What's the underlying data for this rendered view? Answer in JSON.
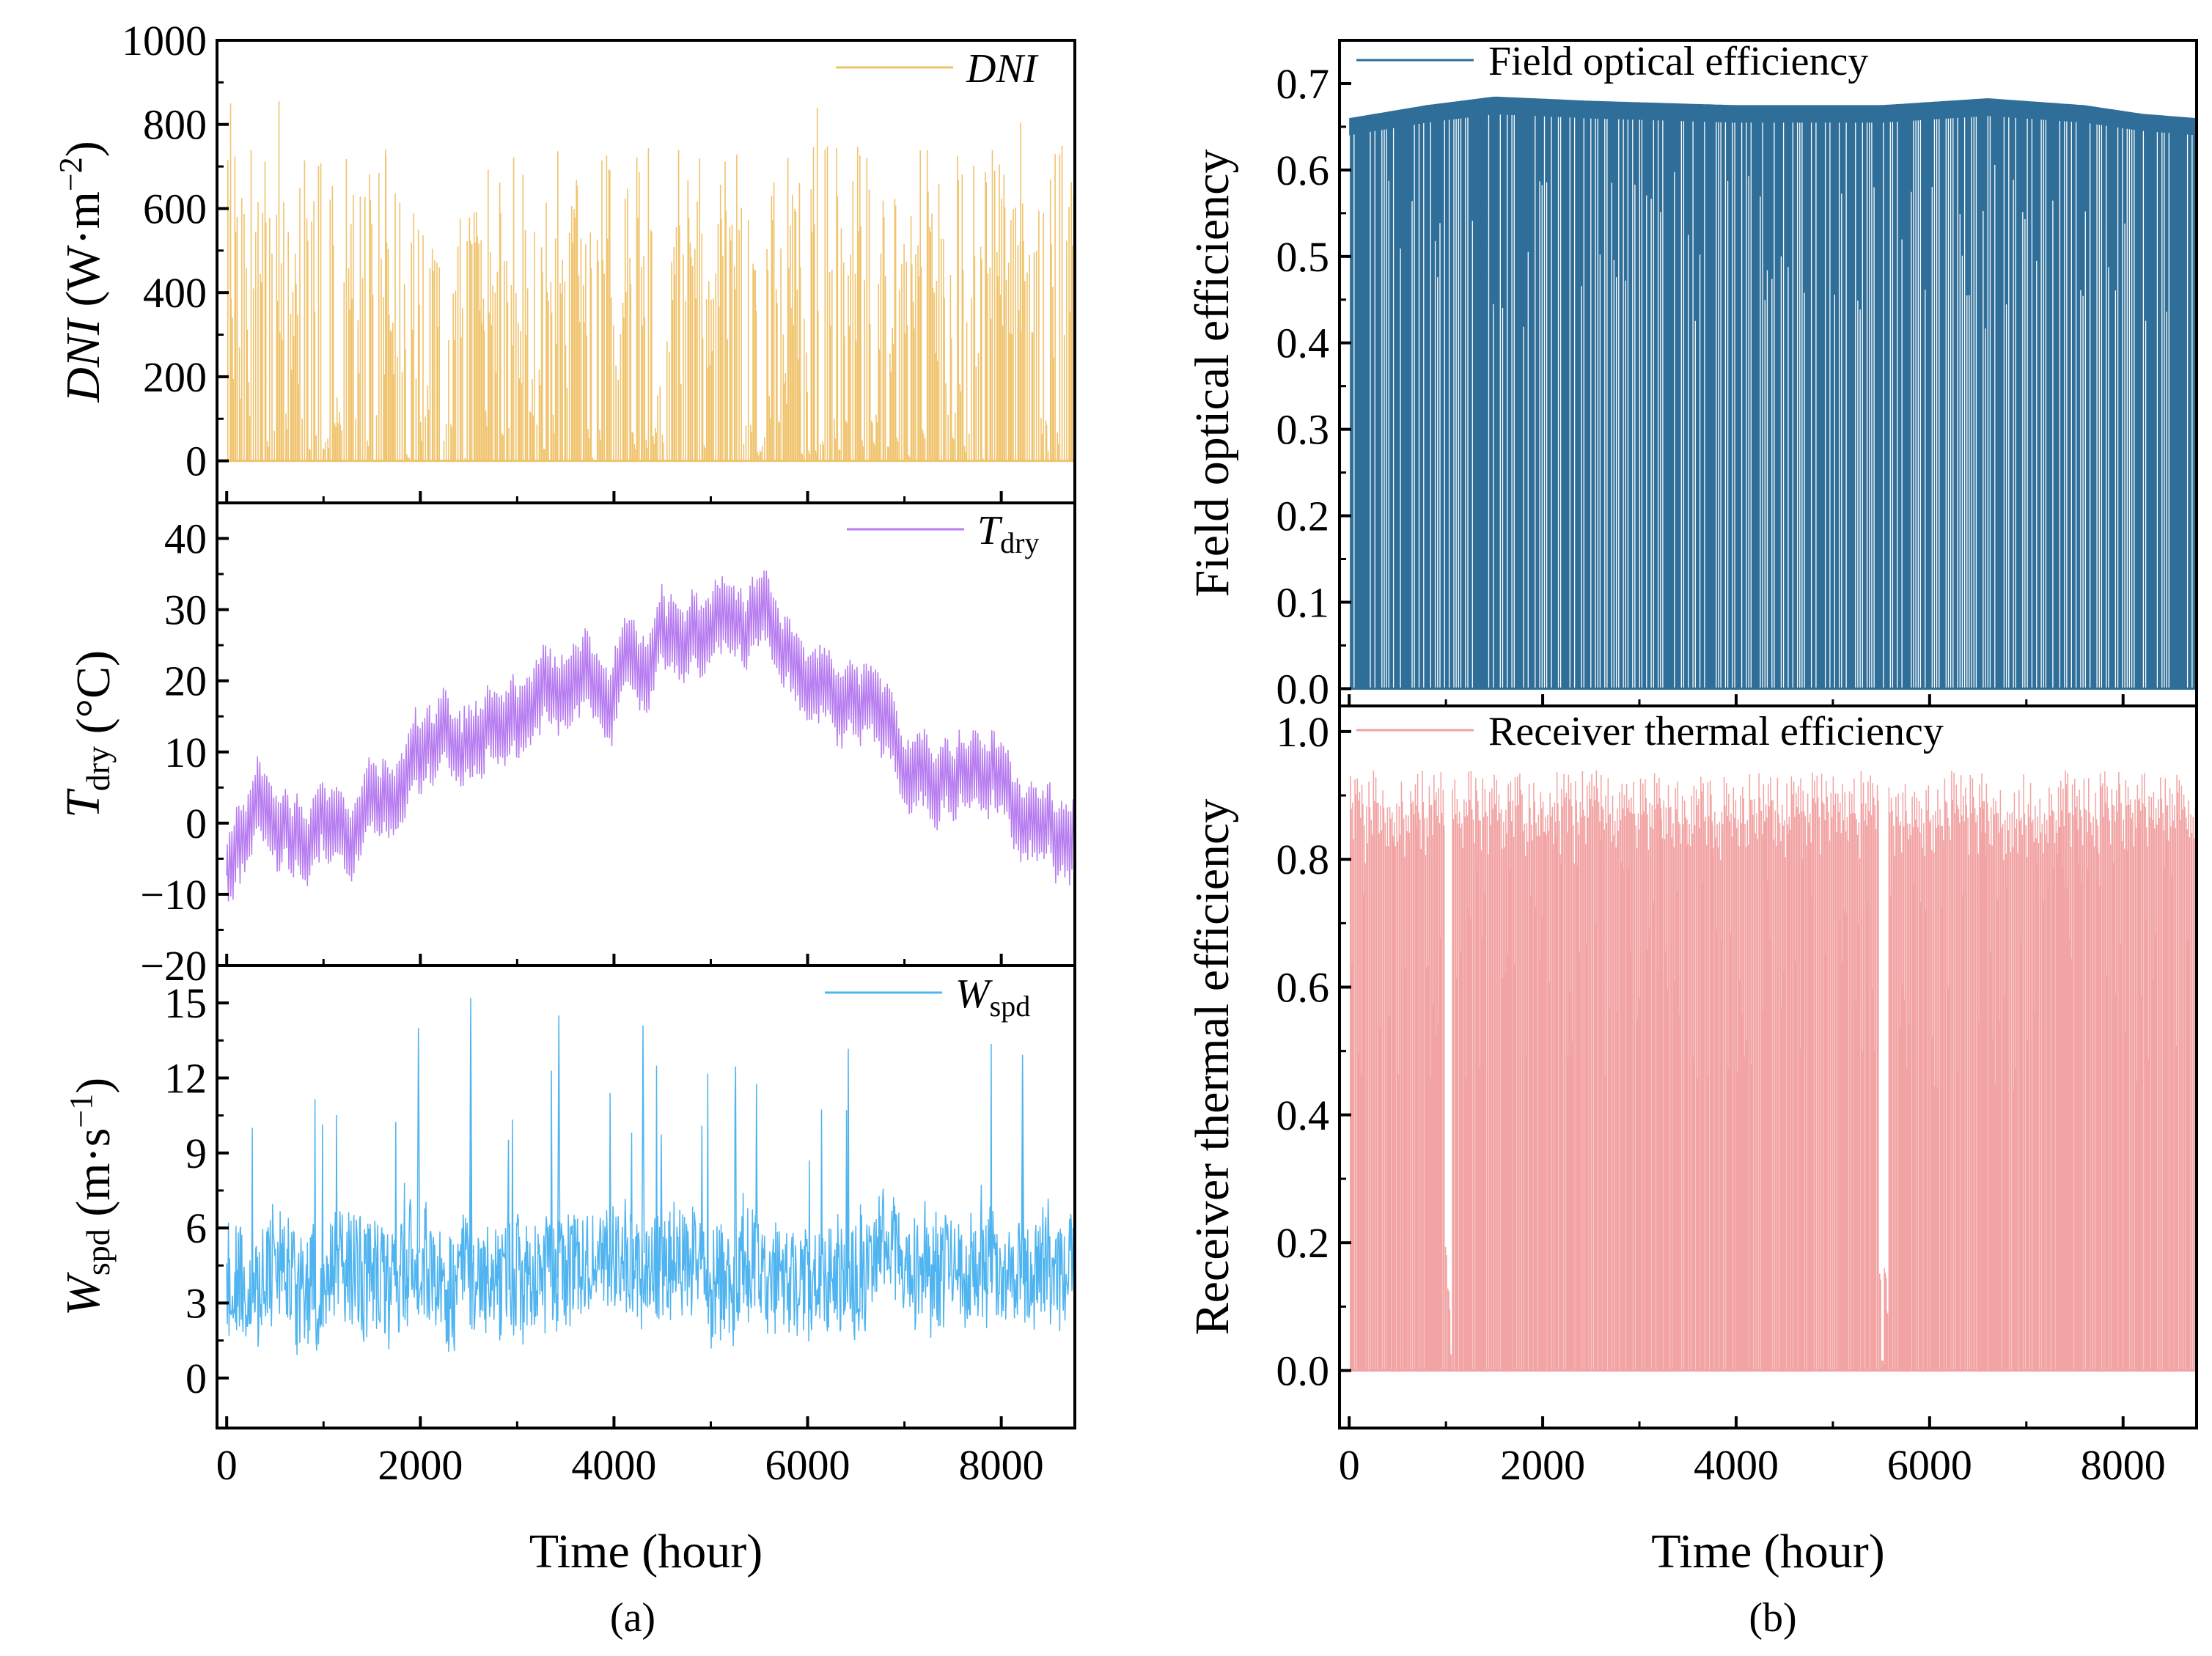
{
  "figure": {
    "left_label": "(a)",
    "right_label": "(b)"
  },
  "chart_data": [
    {
      "id": "dni",
      "type": "area",
      "xlim": [
        -100,
        8760
      ],
      "ylim": [
        -100,
        1000
      ],
      "yticks": [
        0,
        200,
        400,
        600,
        800,
        1000
      ],
      "xticks": [
        0,
        2000,
        4000,
        6000,
        8000
      ],
      "show_xticklabels": false,
      "ylabel": {
        "sym": "DNI",
        "sub": "",
        "unit": " (W·m",
        "sup": "−2",
        "close": ")"
      },
      "legend": {
        "sym": "DNI",
        "sub": "",
        "position": "top-right"
      },
      "series": [
        {
          "name": "DNI",
          "color": "#F0C36D",
          "mode": "spikes",
          "base": 0,
          "summary": "hourly direct normal irradiance, 0 at night, daytime peaks mostly 400-850",
          "notable_peaks": [
            [
              40,
              850
            ],
            [
              540,
              855
            ],
            [
              1640,
              740
            ],
            [
              6100,
              840
            ],
            [
              8200,
              805
            ]
          ],
          "low_periods": [
            [
              980,
              1060
            ],
            [
              5480,
              5560
            ]
          ],
          "max": 855
        }
      ]
    },
    {
      "id": "tdry",
      "type": "line",
      "xlim": [
        -100,
        8760
      ],
      "ylim": [
        -20,
        45
      ],
      "yticks": [
        -20,
        -10,
        0,
        10,
        20,
        30,
        40
      ],
      "xticks": [
        0,
        2000,
        4000,
        6000,
        8000
      ],
      "show_xticklabels": false,
      "ylabel": {
        "sym": "T",
        "sub": "dry",
        "unit": " (°C)",
        "sup": "",
        "close": ""
      },
      "legend": {
        "sym": "T",
        "sub": "dry",
        "position": "top-right"
      },
      "series": [
        {
          "name": "Tdry",
          "color": "#B77CF0",
          "mode": "line",
          "seasonal_trend": [
            [
              0,
              -8
            ],
            [
              400,
              0
            ],
            [
              1000,
              1
            ],
            [
              2000,
              8
            ],
            [
              3000,
              15
            ],
            [
              3500,
              20
            ],
            [
              4000,
              22
            ],
            [
              4800,
              27
            ],
            [
              5200,
              28
            ],
            [
              5500,
              28
            ],
            [
              6000,
              22
            ],
            [
              6500,
              18
            ],
            [
              7000,
              12
            ],
            [
              7500,
              8
            ],
            [
              8000,
              3
            ],
            [
              8500,
              -1
            ],
            [
              8760,
              -5
            ]
          ],
          "daily_range": 10,
          "min": -11,
          "max": 36
        }
      ]
    },
    {
      "id": "wspd",
      "type": "line",
      "xlim": [
        -100,
        8760
      ],
      "ylim": [
        -2,
        16.5
      ],
      "yticks": [
        0,
        3,
        6,
        9,
        12,
        15
      ],
      "xticks": [
        0,
        2000,
        4000,
        6000,
        8000
      ],
      "show_xticklabels": true,
      "xticklabels": [
        "0",
        "2000",
        "4000",
        "6000",
        "8000"
      ],
      "xlabel": "Time (hour)",
      "ylabel": {
        "sym": "W",
        "sub": "spd",
        "unit": " (m·s",
        "sup": "−1",
        "close": ")"
      },
      "legend": {
        "sym": "W",
        "sub": "spd",
        "position": "top-right"
      },
      "series": [
        {
          "name": "Wspd",
          "color": "#4FB4EF",
          "mode": "line",
          "mean": 3.8,
          "notable_peaks": [
            [
              2520,
              15.2
            ],
            [
              4300,
              14.1
            ],
            [
              1980,
              14.0
            ],
            [
              3430,
              14.5
            ],
            [
              8220,
              12.8
            ]
          ],
          "min": 0,
          "max": 15.3
        }
      ]
    },
    {
      "id": "optical",
      "type": "area",
      "xlim": [
        -100,
        8760
      ],
      "ylim": [
        -0.02,
        0.75
      ],
      "yticks": [
        0.0,
        0.1,
        0.2,
        0.3,
        0.4,
        0.5,
        0.6,
        0.7
      ],
      "yticklabels": [
        "0.0",
        "0.1",
        "0.2",
        "0.3",
        "0.4",
        "0.5",
        "0.6",
        "0.7"
      ],
      "xticks": [
        0,
        2000,
        4000,
        6000,
        8000
      ],
      "show_xticklabels": false,
      "ylabel": {
        "sym": "",
        "sub": "",
        "unit": "Field optical efficiency",
        "sup": "",
        "close": ""
      },
      "legend": {
        "text": "Field optical efficiency",
        "position": "top-left"
      },
      "series": [
        {
          "name": "Field optical efficiency",
          "color": "#2E6E98",
          "mode": "spikes",
          "base": 0,
          "daily_max_envelope": [
            [
              0,
              0.66
            ],
            [
              800,
              0.675
            ],
            [
              1500,
              0.685
            ],
            [
              2500,
              0.68
            ],
            [
              4000,
              0.675
            ],
            [
              5500,
              0.675
            ],
            [
              6600,
              0.683
            ],
            [
              7600,
              0.675
            ],
            [
              8200,
              0.665
            ],
            [
              8760,
              0.66
            ]
          ],
          "max": 0.685
        }
      ]
    },
    {
      "id": "thermal",
      "type": "area",
      "xlim": [
        -100,
        8760
      ],
      "ylim": [
        -0.09,
        1.04
      ],
      "yticks": [
        0.0,
        0.2,
        0.4,
        0.6,
        0.8,
        1.0
      ],
      "yticklabels": [
        "0.0",
        "0.2",
        "0.4",
        "0.6",
        "0.8",
        "1.0"
      ],
      "xticks": [
        0,
        2000,
        4000,
        6000,
        8000
      ],
      "show_xticklabels": true,
      "xticklabels": [
        "0",
        "2000",
        "4000",
        "6000",
        "8000"
      ],
      "xlabel": "Time (hour)",
      "ylabel": {
        "sym": "",
        "sub": "",
        "unit": "Receiver thermal efficiency",
        "sup": "",
        "close": ""
      },
      "legend": {
        "text": "Receiver thermal efficiency",
        "position": "top-left"
      },
      "series": [
        {
          "name": "Receiver thermal efficiency",
          "color": "#F2A3A3",
          "mode": "spikes",
          "base": 0,
          "daily_max_range": [
            0.85,
            0.94
          ],
          "max": 0.94
        }
      ]
    }
  ]
}
